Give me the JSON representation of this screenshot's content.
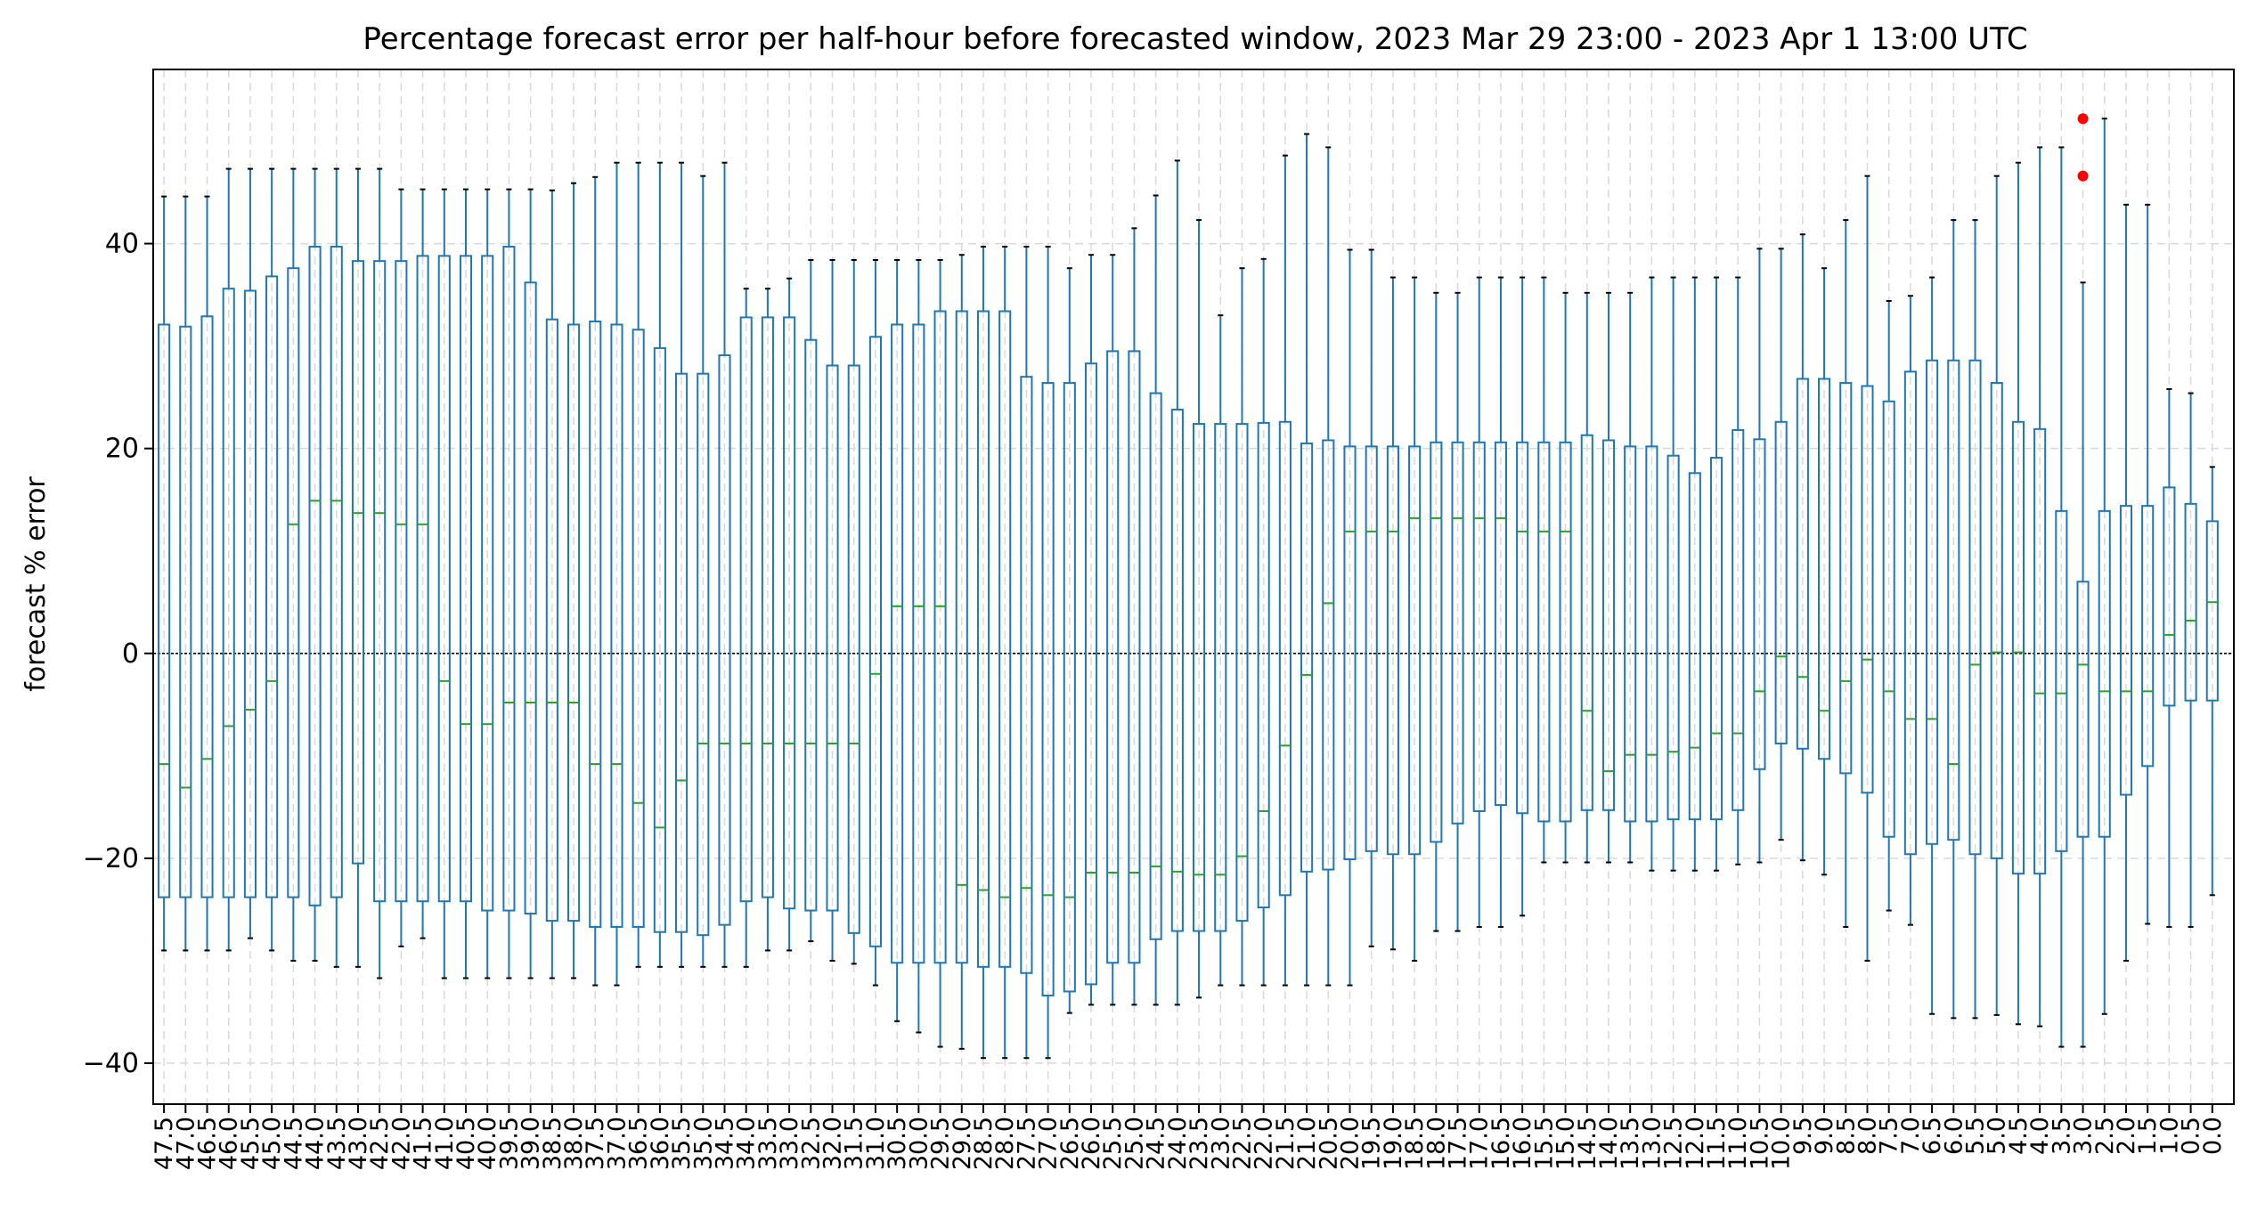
{
  "chart_data": {
    "type": "box",
    "title": "Percentage forecast error per half-hour before forecasted window, 2023 Mar 29 23:00 - 2023 Apr 1 13:00 UTC",
    "xlabel": "",
    "ylabel": "forecast % error",
    "ylim": [
      -44,
      57
    ],
    "yticks": [
      -40,
      -20,
      0,
      20,
      40
    ],
    "grid": true,
    "zero_line": true,
    "colors": {
      "box": "#1f77b4",
      "median": "#2ca02c",
      "outlier": "#ff0000",
      "grid": "#d9d9d9",
      "zero": "#000000"
    },
    "boxes": [
      {
        "label": "47.5",
        "whislo": -29,
        "q1": -23.8,
        "med": -10.8,
        "q3": 32.1,
        "whishi": 44.6
      },
      {
        "label": "47.0",
        "whislo": -29,
        "q1": -23.8,
        "med": -13.1,
        "q3": 31.9,
        "whishi": 44.6
      },
      {
        "label": "46.5",
        "whislo": -29,
        "q1": -23.8,
        "med": -10.3,
        "q3": 32.9,
        "whishi": 44.6
      },
      {
        "label": "46.0",
        "whislo": -29,
        "q1": -23.8,
        "med": -7.1,
        "q3": 35.6,
        "whishi": 47.3
      },
      {
        "label": "45.5",
        "whislo": -27.8,
        "q1": -23.8,
        "med": -5.5,
        "q3": 35.4,
        "whishi": 47.3
      },
      {
        "label": "45.0",
        "whislo": -29,
        "q1": -23.8,
        "med": -2.7,
        "q3": 36.8,
        "whishi": 47.3
      },
      {
        "label": "44.5",
        "whislo": -30,
        "q1": -23.8,
        "med": 12.6,
        "q3": 37.6,
        "whishi": 47.3
      },
      {
        "label": "44.0",
        "whislo": -30,
        "q1": -24.6,
        "med": 14.9,
        "q3": 39.7,
        "whishi": 47.3
      },
      {
        "label": "43.5",
        "whislo": -30.6,
        "q1": -23.8,
        "med": 14.9,
        "q3": 39.7,
        "whishi": 47.3
      },
      {
        "label": "43.0",
        "whislo": -30.6,
        "q1": -20.5,
        "med": 13.7,
        "q3": 38.3,
        "whishi": 47.3
      },
      {
        "label": "42.5",
        "whislo": -31.7,
        "q1": -24.2,
        "med": 13.7,
        "q3": 38.3,
        "whishi": 47.3
      },
      {
        "label": "42.0",
        "whislo": -28.6,
        "q1": -24.2,
        "med": 12.6,
        "q3": 38.3,
        "whishi": 45.3
      },
      {
        "label": "41.5",
        "whislo": -27.8,
        "q1": -24.2,
        "med": 12.6,
        "q3": 38.8,
        "whishi": 45.3
      },
      {
        "label": "41.0",
        "whislo": -31.7,
        "q1": -24.2,
        "med": -2.7,
        "q3": 38.8,
        "whishi": 45.3
      },
      {
        "label": "40.5",
        "whislo": -31.7,
        "q1": -24.2,
        "med": -6.9,
        "q3": 38.8,
        "whishi": 45.3
      },
      {
        "label": "40.0",
        "whislo": -31.7,
        "q1": -25.1,
        "med": -6.9,
        "q3": 38.8,
        "whishi": 45.3
      },
      {
        "label": "39.5",
        "whislo": -31.7,
        "q1": -25.1,
        "med": -4.8,
        "q3": 39.7,
        "whishi": 45.3
      },
      {
        "label": "39.0",
        "whislo": -31.7,
        "q1": -25.4,
        "med": -4.8,
        "q3": 36.2,
        "whishi": 45.3
      },
      {
        "label": "38.5",
        "whislo": -31.7,
        "q1": -26.1,
        "med": -4.8,
        "q3": 32.6,
        "whishi": 45.2
      },
      {
        "label": "38.0",
        "whislo": -31.7,
        "q1": -26.1,
        "med": -4.8,
        "q3": 32.1,
        "whishi": 45.9
      },
      {
        "label": "37.5",
        "whislo": -32.4,
        "q1": -26.7,
        "med": -10.8,
        "q3": 32.4,
        "whishi": 46.5
      },
      {
        "label": "37.0",
        "whislo": -32.4,
        "q1": -26.7,
        "med": -10.8,
        "q3": 32.1,
        "whishi": 47.9
      },
      {
        "label": "36.5",
        "whislo": -30.6,
        "q1": -26.7,
        "med": -14.6,
        "q3": 31.6,
        "whishi": 47.9
      },
      {
        "label": "36.0",
        "whislo": -30.6,
        "q1": -27.2,
        "med": -17,
        "q3": 29.8,
        "whishi": 47.9
      },
      {
        "label": "35.5",
        "whislo": -30.6,
        "q1": -27.2,
        "med": -12.4,
        "q3": 27.3,
        "whishi": 47.9
      },
      {
        "label": "35.0",
        "whislo": -30.6,
        "q1": -27.5,
        "med": -8.8,
        "q3": 27.3,
        "whishi": 46.6
      },
      {
        "label": "34.5",
        "whislo": -30.6,
        "q1": -26.5,
        "med": -8.8,
        "q3": 29.1,
        "whishi": 47.9
      },
      {
        "label": "34.0",
        "whislo": -30.6,
        "q1": -24.2,
        "med": -8.8,
        "q3": 32.8,
        "whishi": 35.6
      },
      {
        "label": "33.5",
        "whislo": -29,
        "q1": -23.8,
        "med": -8.8,
        "q3": 32.8,
        "whishi": 35.6
      },
      {
        "label": "33.0",
        "whislo": -29,
        "q1": -24.9,
        "med": -8.8,
        "q3": 32.8,
        "whishi": 36.6
      },
      {
        "label": "32.5",
        "whislo": -28.1,
        "q1": -25.1,
        "med": -8.8,
        "q3": 30.6,
        "whishi": 38.4
      },
      {
        "label": "32.0",
        "whislo": -30,
        "q1": -25.1,
        "med": -8.8,
        "q3": 28.1,
        "whishi": 38.4
      },
      {
        "label": "31.5",
        "whislo": -30.3,
        "q1": -27.3,
        "med": -8.8,
        "q3": 28.1,
        "whishi": 38.4
      },
      {
        "label": "31.0",
        "whislo": -32.4,
        "q1": -28.6,
        "med": -2,
        "q3": 30.9,
        "whishi": 38.4
      },
      {
        "label": "30.5",
        "whislo": -35.9,
        "q1": -30.2,
        "med": 4.6,
        "q3": 32.1,
        "whishi": 38.4
      },
      {
        "label": "30.0",
        "whislo": -37,
        "q1": -30.2,
        "med": 4.6,
        "q3": 32.1,
        "whishi": 38.4
      },
      {
        "label": "29.5",
        "whislo": -38.4,
        "q1": -30.2,
        "med": 4.6,
        "q3": 33.4,
        "whishi": 38.4
      },
      {
        "label": "29.0",
        "whislo": -38.6,
        "q1": -30.2,
        "med": -22.6,
        "q3": 33.4,
        "whishi": 38.9
      },
      {
        "label": "28.5",
        "whislo": -39.5,
        "q1": -30.6,
        "med": -23.1,
        "q3": 33.4,
        "whishi": 39.7
      },
      {
        "label": "28.0",
        "whislo": -39.5,
        "q1": -30.6,
        "med": -23.8,
        "q3": 33.4,
        "whishi": 39.7
      },
      {
        "label": "27.5",
        "whislo": -39.5,
        "q1": -31.2,
        "med": -22.9,
        "q3": 27,
        "whishi": 39.7
      },
      {
        "label": "27.0",
        "whislo": -39.5,
        "q1": -33.4,
        "med": -23.6,
        "q3": 26.4,
        "whishi": 39.7
      },
      {
        "label": "26.5",
        "whislo": -35.1,
        "q1": -33,
        "med": -23.8,
        "q3": 26.4,
        "whishi": 37.6
      },
      {
        "label": "26.0",
        "whislo": -34.3,
        "q1": -32.3,
        "med": -21.4,
        "q3": 28.3,
        "whishi": 38.9
      },
      {
        "label": "25.5",
        "whislo": -34.3,
        "q1": -30.2,
        "med": -21.4,
        "q3": 29.5,
        "whishi": 38.9
      },
      {
        "label": "25.0",
        "whislo": -34.3,
        "q1": -30.2,
        "med": -21.4,
        "q3": 29.5,
        "whishi": 41.5
      },
      {
        "label": "24.5",
        "whislo": -34.3,
        "q1": -27.9,
        "med": -20.8,
        "q3": 25.4,
        "whishi": 44.7
      },
      {
        "label": "24.0",
        "whislo": -34.3,
        "q1": -27.1,
        "med": -21.3,
        "q3": 23.8,
        "whishi": 48.1
      },
      {
        "label": "23.5",
        "whislo": -33.6,
        "q1": -27.1,
        "med": -21.6,
        "q3": 22.4,
        "whishi": 42.3
      },
      {
        "label": "23.0",
        "whislo": -32.4,
        "q1": -27.1,
        "med": -21.6,
        "q3": 22.4,
        "whishi": 33
      },
      {
        "label": "22.5",
        "whislo": -32.4,
        "q1": -26.1,
        "med": -19.8,
        "q3": 22.4,
        "whishi": 37.6
      },
      {
        "label": "22.0",
        "whislo": -32.4,
        "q1": -24.8,
        "med": -15.4,
        "q3": 22.5,
        "whishi": 38.5
      },
      {
        "label": "21.5",
        "whislo": -32.4,
        "q1": -23.6,
        "med": -9,
        "q3": 22.6,
        "whishi": 48.6
      },
      {
        "label": "21.0",
        "whislo": -32.4,
        "q1": -21.3,
        "med": -2.1,
        "q3": 20.5,
        "whishi": 50.7
      },
      {
        "label": "20.5",
        "whislo": -32.4,
        "q1": -21.1,
        "med": 4.9,
        "q3": 20.8,
        "whishi": 49.4
      },
      {
        "label": "20.0",
        "whislo": -32.4,
        "q1": -20.1,
        "med": 11.9,
        "q3": 20.2,
        "whishi": 39.4
      },
      {
        "label": "19.5",
        "whislo": -28.6,
        "q1": -19.3,
        "med": 11.9,
        "q3": 20.2,
        "whishi": 39.4
      },
      {
        "label": "19.0",
        "whislo": -28.9,
        "q1": -19.6,
        "med": 11.9,
        "q3": 20.2,
        "whishi": 36.7
      },
      {
        "label": "18.5",
        "whislo": -30,
        "q1": -19.6,
        "med": 13.2,
        "q3": 20.2,
        "whishi": 36.7
      },
      {
        "label": "18.0",
        "whislo": -27.1,
        "q1": -18.4,
        "med": 13.2,
        "q3": 20.6,
        "whishi": 35.2
      },
      {
        "label": "17.5",
        "whislo": -27.1,
        "q1": -16.6,
        "med": 13.2,
        "q3": 20.6,
        "whishi": 35.2
      },
      {
        "label": "17.0",
        "whislo": -26.7,
        "q1": -15.4,
        "med": 13.2,
        "q3": 20.6,
        "whishi": 36.7
      },
      {
        "label": "16.5",
        "whislo": -26.7,
        "q1": -14.8,
        "med": 13.2,
        "q3": 20.6,
        "whishi": 36.7
      },
      {
        "label": "16.0",
        "whislo": -25.6,
        "q1": -15.6,
        "med": 11.9,
        "q3": 20.6,
        "whishi": 36.7
      },
      {
        "label": "15.5",
        "whislo": -20.4,
        "q1": -16.4,
        "med": 11.9,
        "q3": 20.6,
        "whishi": 36.7
      },
      {
        "label": "15.0",
        "whislo": -20.4,
        "q1": -16.4,
        "med": 11.9,
        "q3": 20.6,
        "whishi": 35.2
      },
      {
        "label": "14.5",
        "whislo": -20.4,
        "q1": -15.3,
        "med": -5.6,
        "q3": 21.3,
        "whishi": 35.2
      },
      {
        "label": "14.0",
        "whislo": -20.4,
        "q1": -15.3,
        "med": -11.5,
        "q3": 20.8,
        "whishi": 35.2
      },
      {
        "label": "13.5",
        "whislo": -20.4,
        "q1": -16.4,
        "med": -9.9,
        "q3": 20.2,
        "whishi": 35.2
      },
      {
        "label": "13.0",
        "whislo": -21.2,
        "q1": -16.4,
        "med": -9.9,
        "q3": 20.2,
        "whishi": 36.7
      },
      {
        "label": "12.5",
        "whislo": -21.2,
        "q1": -16.2,
        "med": -9.6,
        "q3": 19.3,
        "whishi": 36.7
      },
      {
        "label": "12.0",
        "whislo": -21.2,
        "q1": -16.2,
        "med": -9.2,
        "q3": 17.6,
        "whishi": 36.7
      },
      {
        "label": "11.5",
        "whislo": -21.2,
        "q1": -16.2,
        "med": -7.8,
        "q3": 19.1,
        "whishi": 36.7
      },
      {
        "label": "11.0",
        "whislo": -20.6,
        "q1": -15.3,
        "med": -7.8,
        "q3": 21.8,
        "whishi": 36.7
      },
      {
        "label": "10.5",
        "whislo": -20.4,
        "q1": -11.3,
        "med": -3.7,
        "q3": 20.9,
        "whishi": 39.5
      },
      {
        "label": "10.0",
        "whislo": -18.2,
        "q1": -8.8,
        "med": -0.3,
        "q3": 22.6,
        "whishi": 39.5
      },
      {
        "label": "9.5",
        "whislo": -20.2,
        "q1": -9.3,
        "med": -2.3,
        "q3": 26.8,
        "whishi": 40.9
      },
      {
        "label": "9.0",
        "whislo": -21.6,
        "q1": -10.3,
        "med": -5.6,
        "q3": 26.8,
        "whishi": 37.6
      },
      {
        "label": "8.5",
        "whislo": -26.7,
        "q1": -11.7,
        "med": -2.7,
        "q3": 26.4,
        "whishi": 42.3
      },
      {
        "label": "8.0",
        "whislo": -30,
        "q1": -13.6,
        "med": -0.6,
        "q3": 26.1,
        "whishi": 46.6
      },
      {
        "label": "7.5",
        "whislo": -25.1,
        "q1": -17.9,
        "med": -3.7,
        "q3": 24.6,
        "whishi": 34.4
      },
      {
        "label": "7.0",
        "whislo": -26.5,
        "q1": -19.6,
        "med": -6.4,
        "q3": 27.5,
        "whishi": 34.9
      },
      {
        "label": "6.5",
        "whislo": -35.2,
        "q1": -18.6,
        "med": -6.4,
        "q3": 28.6,
        "whishi": 36.7
      },
      {
        "label": "6.0",
        "whislo": -35.6,
        "q1": -18.2,
        "med": -10.8,
        "q3": 28.6,
        "whishi": 42.3
      },
      {
        "label": "5.5",
        "whislo": -35.6,
        "q1": -19.6,
        "med": -1.1,
        "q3": 28.6,
        "whishi": 42.3
      },
      {
        "label": "5.0",
        "whislo": -35.3,
        "q1": -20,
        "med": 0.1,
        "q3": 26.4,
        "whishi": 46.6
      },
      {
        "label": "4.5",
        "whislo": -36.2,
        "q1": -21.5,
        "med": 0.1,
        "q3": 22.6,
        "whishi": 47.9
      },
      {
        "label": "4.0",
        "whislo": -36.4,
        "q1": -21.5,
        "med": -3.9,
        "q3": 21.9,
        "whishi": 49.4
      },
      {
        "label": "3.5",
        "whislo": -38.4,
        "q1": -19.3,
        "med": -3.9,
        "q3": 13.9,
        "whishi": 49.4
      },
      {
        "label": "3.0",
        "whislo": -38.4,
        "q1": -17.9,
        "med": -1.1,
        "q3": 7,
        "whishi": 36.2,
        "fliers": [
          52.2,
          46.6
        ]
      },
      {
        "label": "2.5",
        "whislo": -35.2,
        "q1": -17.9,
        "med": -3.7,
        "q3": 13.9,
        "whishi": 52.2
      },
      {
        "label": "2.0",
        "whislo": -30,
        "q1": -13.8,
        "med": -3.7,
        "q3": 14.4,
        "whishi": 43.8
      },
      {
        "label": "1.5",
        "whislo": -26.4,
        "q1": -11,
        "med": -3.7,
        "q3": 14.4,
        "whishi": 43.8
      },
      {
        "label": "1.0",
        "whislo": -26.7,
        "q1": -5.1,
        "med": 1.8,
        "q3": 16.2,
        "whishi": 25.8
      },
      {
        "label": "0.5",
        "whislo": -26.7,
        "q1": -4.6,
        "med": 3.2,
        "q3": 14.6,
        "whishi": 25.4
      },
      {
        "label": "0.0",
        "whislo": -23.6,
        "q1": -4.6,
        "med": 5,
        "q3": 12.9,
        "whishi": 18.2
      }
    ]
  }
}
